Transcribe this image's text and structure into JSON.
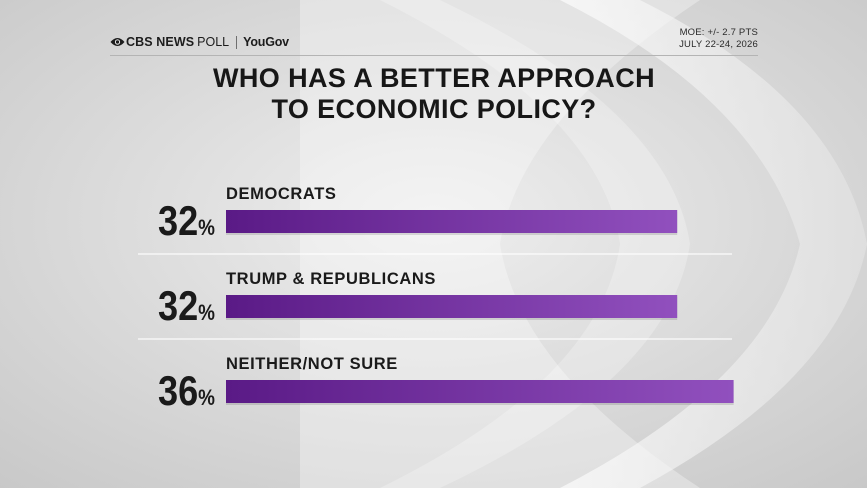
{
  "header": {
    "brand_cbs": "CBS NEWS",
    "brand_poll": "POLL",
    "brand_partner": "YouGov",
    "moe": "MOE: +/- 2.7 PTS",
    "dates": "JULY 22-24, 2026"
  },
  "colors": {
    "bar_start": "#5a1a86",
    "bar_end": "#9150be",
    "text": "#1a1a1a"
  },
  "chart_data": {
    "type": "bar",
    "orientation": "horizontal",
    "title": "WHO HAS A BETTER APPROACH TO ECONOMIC POLICY?",
    "title_lines": [
      "WHO HAS A BETTER APPROACH",
      "TO ECONOMIC POLICY?"
    ],
    "categories": [
      "DEMOCRATS",
      "TRUMP & REPUBLICANS",
      "NEITHER/NOT SURE"
    ],
    "values": [
      32,
      32,
      36
    ],
    "value_suffix": "%",
    "grid": false,
    "legend": "none"
  }
}
